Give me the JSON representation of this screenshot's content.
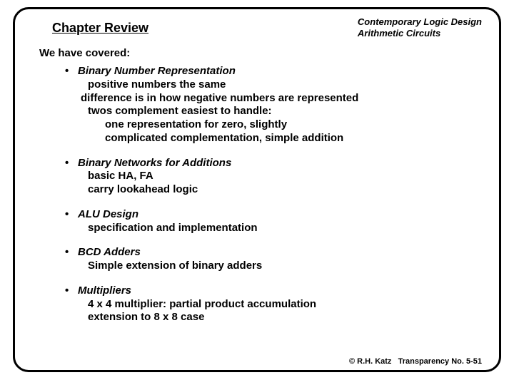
{
  "header": {
    "chapter_title": "Chapter Review",
    "book_line1": "Contemporary Logic Design",
    "book_line2": "Arithmetic Circuits"
  },
  "intro": "We have covered:",
  "bullets": [
    {
      "title": "Binary Number Representation",
      "lines": [
        {
          "text": "positive numbers the same",
          "indent": "sub1"
        },
        {
          "text": "difference is in how negative numbers are represented",
          "indent": "sub2"
        },
        {
          "text": "twos complement easiest to handle:",
          "indent": "sub1"
        },
        {
          "text": "one representation for zero, slightly",
          "indent": "sub3"
        },
        {
          "text": "complicated complementation, simple addition",
          "indent": "sub3"
        }
      ]
    },
    {
      "title": "Binary Networks for Additions",
      "lines": [
        {
          "text": "basic HA, FA",
          "indent": "sub1"
        },
        {
          "text": "carry lookahead logic",
          "indent": "sub1"
        }
      ]
    },
    {
      "title": "ALU Design",
      "lines": [
        {
          "text": "specification and implementation",
          "indent": "sub1"
        }
      ]
    },
    {
      "title": "BCD Adders",
      "lines": [
        {
          "text": "Simple extension of binary adders",
          "indent": "sub1"
        }
      ]
    },
    {
      "title": "Multipliers",
      "lines": [
        {
          "text": "4 x 4 multiplier: partial product accumulation",
          "indent": "sub1"
        },
        {
          "text": "extension to 8 x 8 case",
          "indent": "sub1"
        }
      ]
    }
  ],
  "footer": {
    "copyright": "© R.H. Katz",
    "transparency": "Transparency No. 5-51"
  }
}
